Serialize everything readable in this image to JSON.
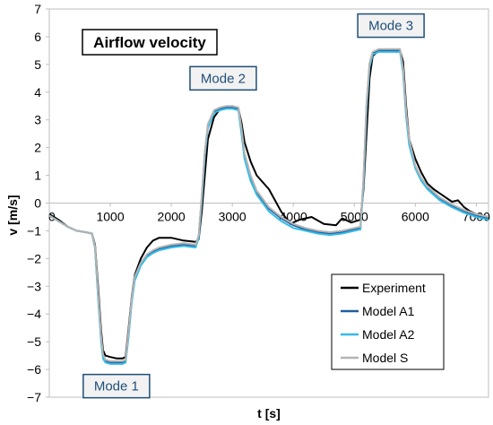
{
  "chart_data": {
    "type": "line",
    "title": "Airflow velocity",
    "xlabel": "t [s]",
    "ylabel": "v [m/s]",
    "xlim": [
      0,
      7200
    ],
    "ylim": [
      -7,
      7
    ],
    "xticks": [
      0,
      1000,
      2000,
      3000,
      4000,
      5000,
      6000,
      7000
    ],
    "yticks": [
      -7,
      -6,
      -5,
      -4,
      -3,
      -2,
      -1,
      0,
      1,
      2,
      3,
      4,
      5,
      6,
      7
    ],
    "legend_position": "bottom-right",
    "grid": false,
    "annotations": [
      {
        "text": "Mode 1",
        "x": 1100,
        "y": -6.6
      },
      {
        "text": "Mode 2",
        "x": 2850,
        "y": 4.5
      },
      {
        "text": "Mode 3",
        "x": 5600,
        "y": 6.4
      }
    ],
    "series": [
      {
        "name": "Experiment",
        "color": "#000000",
        "x": [
          0,
          150,
          300,
          450,
          600,
          700,
          750,
          800,
          850,
          880,
          920,
          1000,
          1100,
          1200,
          1250,
          1300,
          1350,
          1400,
          1500,
          1600,
          1700,
          1800,
          2000,
          2200,
          2400,
          2450,
          2500,
          2550,
          2600,
          2700,
          2800,
          2900,
          3000,
          3100,
          3150,
          3200,
          3300,
          3400,
          3600,
          3800,
          3950,
          4100,
          4300,
          4500,
          4700,
          4800,
          4950,
          5100,
          5150,
          5200,
          5250,
          5300,
          5400,
          5500,
          5600,
          5700,
          5750,
          5800,
          5850,
          5900,
          6000,
          6100,
          6200,
          6300,
          6400,
          6500,
          6600,
          6700,
          6800,
          6900,
          7000,
          7100,
          7200
        ],
        "y": [
          -0.4,
          -0.6,
          -0.85,
          -1.0,
          -1.05,
          -1.1,
          -1.5,
          -3.0,
          -4.6,
          -5.3,
          -5.5,
          -5.55,
          -5.6,
          -5.6,
          -5.55,
          -4.5,
          -3.4,
          -2.6,
          -2.0,
          -1.6,
          -1.35,
          -1.25,
          -1.25,
          -1.35,
          -1.4,
          -1.3,
          -0.3,
          1.0,
          2.3,
          3.1,
          3.4,
          3.45,
          3.5,
          3.4,
          2.9,
          2.2,
          1.5,
          1.0,
          0.5,
          -0.3,
          -0.75,
          -0.6,
          -0.5,
          -0.75,
          -0.8,
          -0.55,
          -0.7,
          -0.6,
          0.5,
          2.5,
          4.5,
          5.3,
          5.5,
          5.55,
          5.5,
          5.45,
          5.5,
          5.1,
          3.5,
          2.3,
          1.6,
          1.1,
          0.7,
          0.5,
          0.35,
          0.2,
          0.05,
          0.1,
          -0.15,
          -0.3,
          -0.4,
          -0.45,
          -0.5
        ]
      },
      {
        "name": "Model A1",
        "color": "#1f5f9e",
        "x": [
          0,
          150,
          300,
          450,
          600,
          700,
          750,
          800,
          850,
          880,
          920,
          1000,
          1100,
          1200,
          1250,
          1300,
          1350,
          1400,
          1500,
          1600,
          1700,
          1800,
          2000,
          2200,
          2400,
          2450,
          2500,
          2550,
          2600,
          2700,
          2800,
          2900,
          3000,
          3100,
          3150,
          3200,
          3300,
          3400,
          3600,
          3800,
          4000,
          4200,
          4400,
          4600,
          4800,
          5000,
          5100,
          5150,
          5200,
          5250,
          5300,
          5400,
          5500,
          5600,
          5700,
          5750,
          5800,
          5850,
          5900,
          6000,
          6100,
          6200,
          6400,
          6600,
          6800,
          7000,
          7200
        ],
        "y": [
          -0.45,
          -0.65,
          -0.85,
          -1.0,
          -1.05,
          -1.1,
          -1.6,
          -3.3,
          -4.9,
          -5.5,
          -5.7,
          -5.75,
          -5.75,
          -5.75,
          -5.7,
          -4.7,
          -3.5,
          -2.7,
          -2.2,
          -1.9,
          -1.75,
          -1.65,
          -1.55,
          -1.5,
          -1.55,
          -1.2,
          0.2,
          1.8,
          2.8,
          3.3,
          3.4,
          3.45,
          3.45,
          3.4,
          2.6,
          1.7,
          0.9,
          0.4,
          -0.2,
          -0.55,
          -0.8,
          -0.95,
          -1.05,
          -1.1,
          -1.05,
          -0.95,
          -0.9,
          0.8,
          3.5,
          5.0,
          5.4,
          5.5,
          5.5,
          5.5,
          5.5,
          5.5,
          4.8,
          3.2,
          2.2,
          1.3,
          0.85,
          0.55,
          0.15,
          -0.1,
          -0.3,
          -0.45,
          -0.55
        ]
      },
      {
        "name": "Model A2",
        "color": "#33bbe8",
        "x": [
          0,
          150,
          300,
          450,
          600,
          700,
          750,
          800,
          850,
          880,
          920,
          1000,
          1100,
          1200,
          1250,
          1300,
          1350,
          1400,
          1500,
          1600,
          1700,
          1800,
          2000,
          2200,
          2400,
          2450,
          2500,
          2550,
          2600,
          2700,
          2800,
          2900,
          3000,
          3100,
          3150,
          3200,
          3300,
          3400,
          3600,
          3800,
          4000,
          4200,
          4400,
          4600,
          4800,
          5000,
          5100,
          5150,
          5200,
          5250,
          5300,
          5400,
          5500,
          5600,
          5700,
          5750,
          5800,
          5850,
          5900,
          6000,
          6100,
          6200,
          6400,
          6600,
          6800,
          7000,
          7200
        ],
        "y": [
          -0.45,
          -0.65,
          -0.85,
          -1.0,
          -1.05,
          -1.1,
          -1.6,
          -3.4,
          -5.0,
          -5.6,
          -5.75,
          -5.8,
          -5.8,
          -5.8,
          -5.75,
          -4.8,
          -3.6,
          -2.8,
          -2.25,
          -1.95,
          -1.8,
          -1.7,
          -1.6,
          -1.55,
          -1.6,
          -1.25,
          0.1,
          1.7,
          2.7,
          3.25,
          3.35,
          3.4,
          3.4,
          3.35,
          2.5,
          1.6,
          0.8,
          0.3,
          -0.3,
          -0.65,
          -0.9,
          -1.0,
          -1.1,
          -1.15,
          -1.1,
          -1.0,
          -0.95,
          0.7,
          3.4,
          4.9,
          5.35,
          5.45,
          5.45,
          5.45,
          5.45,
          5.45,
          4.7,
          3.1,
          2.1,
          1.25,
          0.8,
          0.5,
          0.1,
          -0.15,
          -0.35,
          -0.5,
          -0.6
        ]
      },
      {
        "name": "Model S",
        "color": "#b4b4b4",
        "x": [
          0,
          150,
          300,
          450,
          600,
          700,
          750,
          800,
          850,
          880,
          920,
          1000,
          1100,
          1200,
          1250,
          1300,
          1350,
          1400,
          1500,
          1600,
          1700,
          1800,
          2000,
          2200,
          2400,
          2450,
          2500,
          2550,
          2600,
          2700,
          2800,
          2900,
          3000,
          3100,
          3150,
          3200,
          3300,
          3400,
          3600,
          3800,
          4000,
          4200,
          4400,
          4600,
          4800,
          5000,
          5100,
          5150,
          5200,
          5250,
          5300,
          5400,
          5500,
          5600,
          5700,
          5750,
          5800,
          5850,
          5900,
          6000,
          6100,
          6200,
          6400,
          6600,
          6800,
          7000,
          7200
        ],
        "y": [
          -0.45,
          -0.65,
          -0.85,
          -1.0,
          -1.05,
          -1.1,
          -1.55,
          -3.2,
          -4.8,
          -5.45,
          -5.65,
          -5.7,
          -5.7,
          -5.7,
          -5.65,
          -4.6,
          -3.45,
          -2.65,
          -2.15,
          -1.85,
          -1.7,
          -1.6,
          -1.5,
          -1.45,
          -1.5,
          -1.15,
          0.25,
          1.85,
          2.85,
          3.35,
          3.45,
          3.5,
          3.5,
          3.45,
          2.7,
          1.8,
          1.0,
          0.45,
          -0.15,
          -0.5,
          -0.75,
          -0.9,
          -1.0,
          -1.05,
          -1.0,
          -0.9,
          -0.85,
          0.9,
          3.6,
          5.05,
          5.45,
          5.55,
          5.55,
          5.55,
          5.55,
          5.55,
          4.85,
          3.3,
          2.3,
          1.35,
          0.9,
          0.6,
          0.2,
          -0.05,
          -0.25,
          -0.4,
          -0.5
        ]
      }
    ]
  }
}
